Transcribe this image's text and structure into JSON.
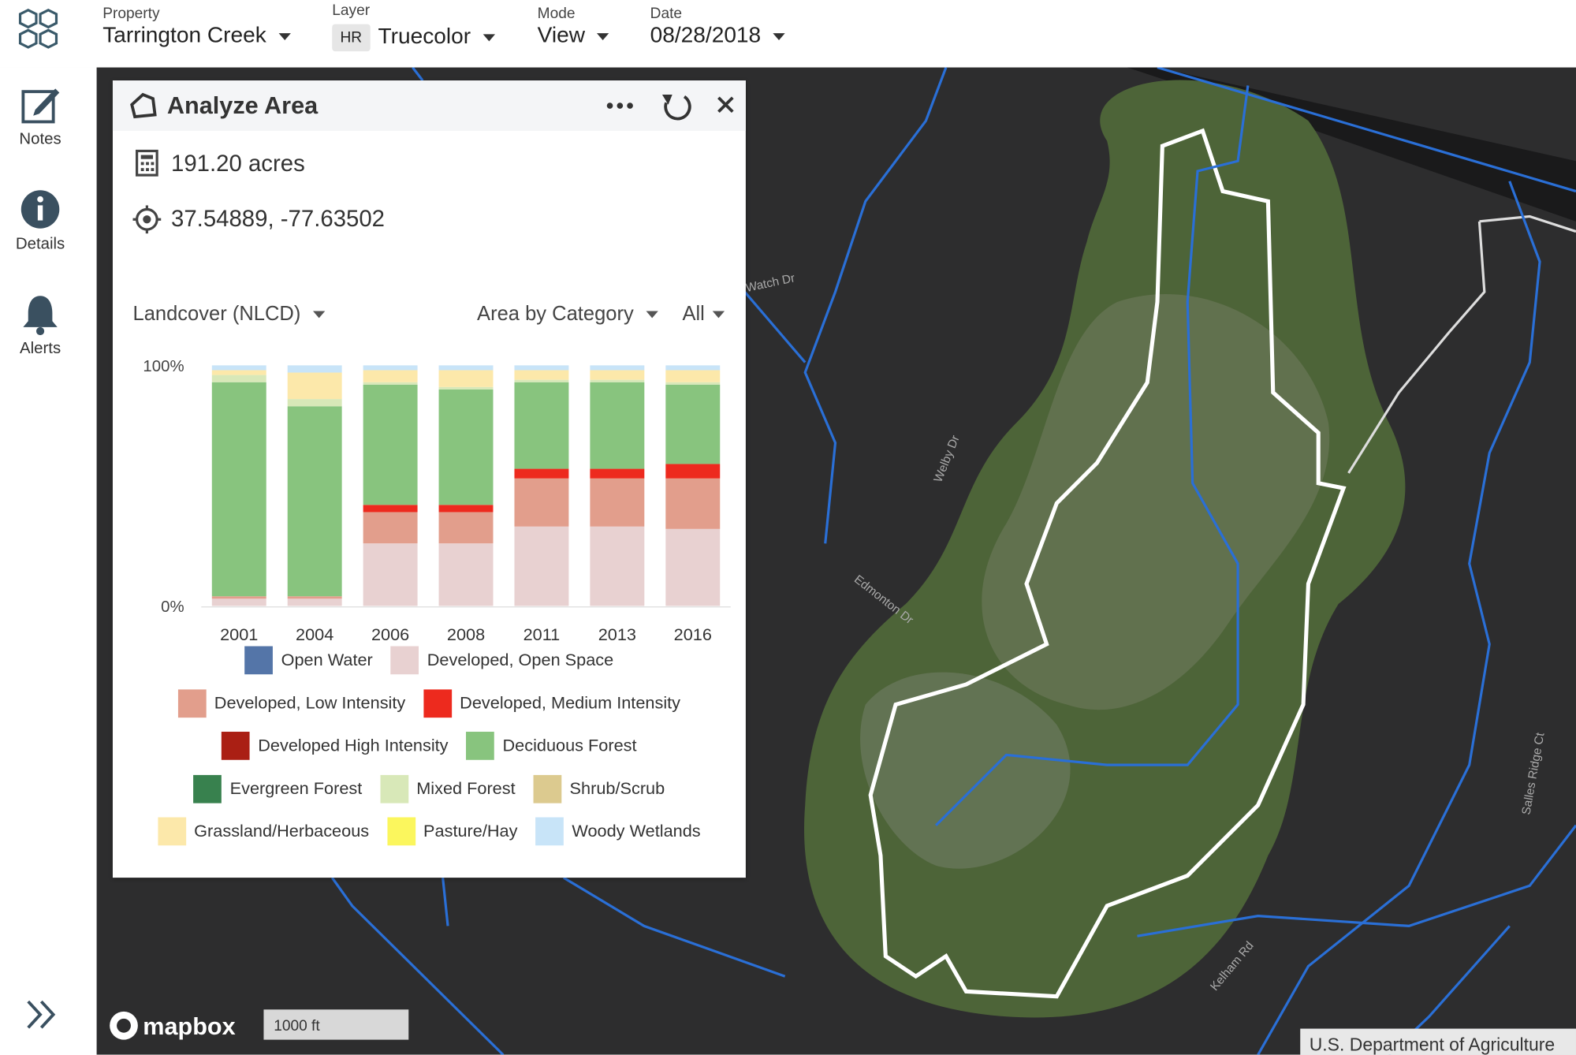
{
  "header": {
    "fields": [
      {
        "label": "Property",
        "value": "Tarrington Creek"
      },
      {
        "label": "Layer",
        "badge": "HR",
        "value": "Truecolor"
      },
      {
        "label": "Mode",
        "value": "View"
      },
      {
        "label": "Date",
        "value": "08/28/2018"
      }
    ]
  },
  "sidebar": [
    "Notes",
    "Details",
    "Alerts"
  ],
  "panel": {
    "title": "Analyze Area",
    "area": "191.20 acres",
    "coordinates": "37.54889, -77.63502",
    "dataset": "Landcover (NLCD)",
    "metric": "Area by Category",
    "filter": "All"
  },
  "map": {
    "streets": [
      "Watch Dr",
      "Welby Dr",
      "Edmonton Dr",
      "Kelham Rd",
      "Salles Ridge Ct"
    ],
    "attribution": "U.S. Department of Agriculture",
    "logo": "mapbox",
    "scale": "1000 ft"
  },
  "chart_data": {
    "type": "bar",
    "stacked": true,
    "categories": [
      "2001",
      "2004",
      "2006",
      "2008",
      "2011",
      "2013",
      "2016"
    ],
    "ylim": [
      0,
      100
    ],
    "yticks": [
      {
        "value": 0,
        "label": "0%"
      },
      {
        "value": 100,
        "label": "100%"
      }
    ],
    "grid": false,
    "series": [
      {
        "name": "Open Water",
        "color": "#5475a8",
        "values": [
          0,
          0,
          0,
          0,
          0,
          0,
          0
        ]
      },
      {
        "name": "Developed, Open Space",
        "color": "#e8d1d1",
        "values": [
          3,
          3,
          26,
          26,
          33,
          33,
          32
        ]
      },
      {
        "name": "Developed, Low Intensity",
        "color": "#e29e8c",
        "values": [
          1,
          1,
          13,
          13,
          20,
          20,
          21
        ]
      },
      {
        "name": "Developed, Medium Intensity",
        "color": "#ed2a1e",
        "values": [
          0,
          0,
          3,
          3,
          4,
          4,
          6
        ]
      },
      {
        "name": "Developed High Intensity",
        "color": "#aa1f14",
        "values": [
          0,
          0,
          0,
          0,
          0,
          0,
          0
        ]
      },
      {
        "name": "Deciduous Forest",
        "color": "#88c47e",
        "values": [
          89,
          79,
          50,
          48,
          36,
          36,
          33
        ]
      },
      {
        "name": "Evergreen Forest",
        "color": "#38814e",
        "values": [
          0,
          0,
          0,
          0,
          0,
          0,
          0
        ]
      },
      {
        "name": "Mixed Forest",
        "color": "#d8e8b8",
        "values": [
          3,
          3,
          1,
          1,
          1,
          1,
          1
        ]
      },
      {
        "name": "Shrub/Scrub",
        "color": "#dcca8f",
        "values": [
          0,
          0,
          0,
          0,
          0,
          0,
          0
        ]
      },
      {
        "name": "Grassland/Herbaceous",
        "color": "#fce8aa",
        "values": [
          2,
          11,
          5,
          7,
          4,
          4,
          5
        ]
      },
      {
        "name": "Pasture/Hay",
        "color": "#fbf65d",
        "values": [
          0,
          0,
          0,
          0,
          0,
          0,
          0
        ]
      },
      {
        "name": "Woody Wetlands",
        "color": "#c8e4f8",
        "values": [
          2,
          3,
          2,
          2,
          2,
          2,
          2
        ]
      }
    ]
  }
}
